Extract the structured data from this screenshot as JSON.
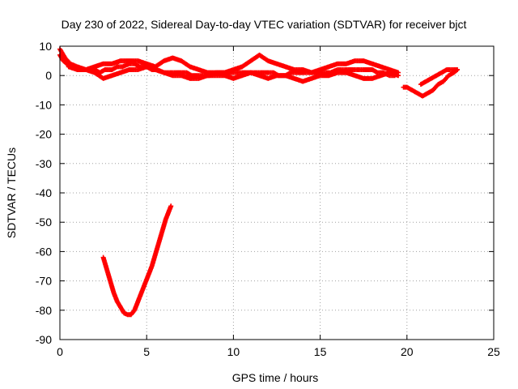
{
  "chart_data": {
    "type": "scatter",
    "title": "Day 230 of 2022, Sidereal Day-to-day VTEC variation (SDTVAR) for receiver bjct",
    "xlabel": "GPS time / hours",
    "ylabel": "SDTVAR / TECUs",
    "xlim": [
      0,
      25
    ],
    "ylim": [
      -90,
      10
    ],
    "xticks": [
      0,
      5,
      10,
      15,
      20,
      25
    ],
    "yticks": [
      10,
      0,
      -10,
      -20,
      -30,
      -40,
      -50,
      -60,
      -70,
      -80,
      -90
    ],
    "xtick_labels": [
      "0",
      "5",
      "10",
      "15",
      "20",
      "25"
    ],
    "ytick_labels": [
      "10",
      "0",
      "-10",
      "-20",
      "-30",
      "-40",
      "-50",
      "-60",
      "-70",
      "-80",
      "-90"
    ],
    "grid": true,
    "grid_style": "dotted",
    "legend": false,
    "marker": "plus",
    "color": "#ff0000",
    "series": [
      {
        "x": [
          0.0,
          0.2,
          0.4,
          0.6,
          0.8,
          1.0,
          1.3,
          1.6,
          2.0,
          2.3,
          2.6,
          3.0,
          3.3,
          3.6,
          4.0,
          4.3,
          4.6,
          5.0,
          5.3,
          5.6,
          6.0,
          6.3,
          6.6,
          7.0,
          7.3,
          7.6,
          8.0,
          8.3,
          8.6,
          9.0,
          9.3,
          9.6,
          10.0,
          10.3,
          10.6,
          11.0,
          11.3,
          11.6,
          12.0,
          12.3,
          12.6,
          13.0,
          13.3,
          13.6,
          14.0,
          14.3,
          14.6,
          15.0,
          15.3,
          15.6,
          16.0,
          16.3,
          16.6,
          17.0,
          17.3,
          17.6,
          18.0,
          18.3,
          18.6,
          19.0,
          19.3
        ],
        "y": [
          7,
          5,
          4,
          3,
          3,
          2,
          2,
          2,
          2,
          1,
          2,
          2,
          3,
          3,
          4,
          4,
          3,
          3,
          2,
          2,
          1,
          1,
          1,
          1,
          1,
          0,
          0,
          0,
          0,
          1,
          1,
          1,
          1,
          1,
          1,
          1,
          1,
          1,
          1,
          1,
          0,
          0,
          1,
          1,
          1,
          1,
          1,
          1,
          1,
          1,
          2,
          2,
          2,
          2,
          2,
          2,
          2,
          1,
          1,
          0,
          0
        ]
      },
      {
        "x": [
          0.0,
          0.3,
          0.6,
          1.0,
          1.5,
          2.0,
          2.5,
          3.0,
          3.5,
          4.0,
          4.5,
          5.0,
          5.5,
          6.0,
          6.5,
          7.0,
          7.5,
          8.0,
          8.5,
          9.0,
          9.5,
          10.0,
          10.5,
          11.0,
          11.5,
          12.0,
          12.5,
          13.0,
          13.5,
          14.0,
          14.5,
          15.0,
          15.5,
          16.0,
          16.5,
          17.0,
          17.5,
          18.0,
          18.5,
          19.0,
          19.5
        ],
        "y": [
          9,
          6,
          4,
          3,
          2,
          3,
          4,
          4,
          5,
          5,
          5,
          4,
          3,
          5,
          6,
          5,
          3,
          2,
          1,
          1,
          1,
          2,
          3,
          5,
          7,
          5,
          4,
          3,
          2,
          2,
          1,
          2,
          3,
          4,
          4,
          5,
          5,
          4,
          3,
          2,
          1
        ]
      },
      {
        "x": [
          0.5,
          1.0,
          1.5,
          2.0,
          2.5,
          3.0,
          3.5,
          4.0,
          4.5,
          5.0,
          5.5,
          6.0,
          6.5,
          7.0,
          7.5,
          8.0,
          8.5,
          9.0,
          9.5,
          10.0,
          10.5,
          11.0,
          11.5,
          12.0,
          12.5,
          13.0,
          13.5,
          14.0,
          14.5,
          15.0,
          15.5,
          16.0,
          16.5,
          17.0,
          17.5,
          18.0,
          18.5,
          19.0,
          19.5
        ],
        "y": [
          3,
          2,
          2,
          1,
          -1,
          0,
          1,
          2,
          2,
          3,
          2,
          1,
          0,
          0,
          -1,
          -1,
          0,
          0,
          0,
          -1,
          0,
          1,
          0,
          -1,
          0,
          0,
          -1,
          -2,
          -1,
          0,
          0,
          1,
          1,
          0,
          -1,
          -1,
          0,
          1,
          0
        ]
      },
      {
        "x": [
          19.8,
          20.0,
          20.3,
          20.6,
          20.9,
          21.2,
          21.5,
          21.8,
          22.1,
          22.4,
          22.7,
          22.9
        ],
        "y": [
          -4,
          -4,
          -5,
          -6,
          -7,
          -6,
          -5,
          -3,
          -2,
          0,
          1,
          2
        ]
      },
      {
        "x": [
          20.8,
          21.1,
          21.4,
          21.7,
          22.0,
          22.3,
          22.6,
          22.9
        ],
        "y": [
          -3,
          -2,
          -1,
          0,
          1,
          2,
          2,
          2
        ]
      },
      {
        "x": [
          2.5,
          2.7,
          2.9,
          3.1,
          3.3,
          3.5,
          3.7,
          3.9,
          4.1,
          4.3,
          4.5,
          4.7,
          4.9,
          5.1,
          5.3,
          5.5,
          5.7,
          5.9,
          6.1,
          6.3,
          6.4
        ],
        "y": [
          -62,
          -66,
          -70,
          -74,
          -77,
          -79,
          -81,
          -81.5,
          -81.5,
          -80,
          -77,
          -74,
          -71,
          -68,
          -65,
          -61,
          -57,
          -53,
          -49,
          -46,
          -44.5
        ]
      }
    ]
  }
}
